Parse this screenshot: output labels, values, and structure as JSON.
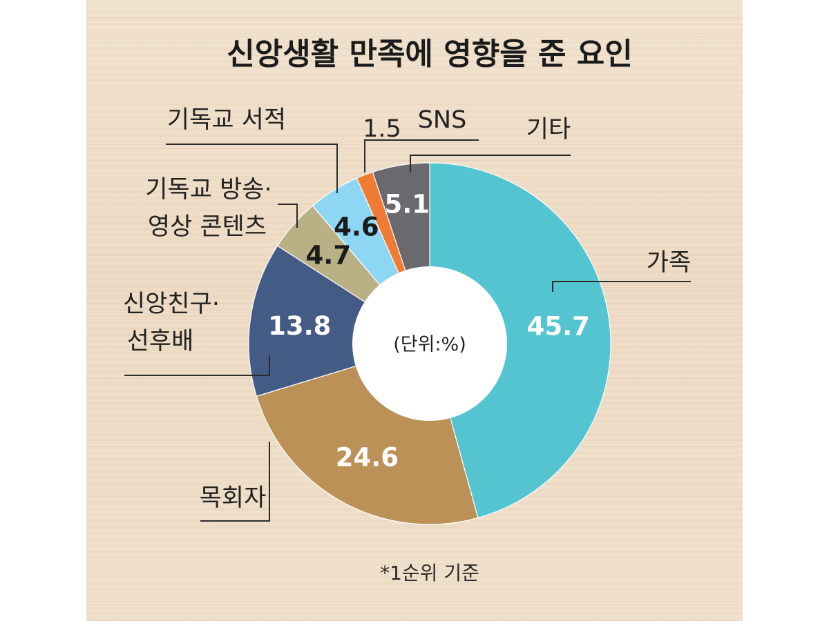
{
  "chart_data": {
    "type": "pie",
    "variant": "donut",
    "title": "신앙생활 만족에 영향을 준 요인",
    "unit_label": "(단위:%)",
    "footnote": "*1순위 기준",
    "slices": [
      {
        "label": "가족",
        "value": 45.7,
        "value_text": "45.7",
        "color": "#55c4d1",
        "value_color": "#ffffff"
      },
      {
        "label": "목회자",
        "value": 24.6,
        "value_text": "24.6",
        "color": "#bb9158",
        "value_color": "#ffffff"
      },
      {
        "label": "신앙친구·\n선후배",
        "value": 13.8,
        "value_text": "13.8",
        "color": "#445b86",
        "value_color": "#ffffff"
      },
      {
        "label": "기독교 방송·\n영상 콘텐츠",
        "value": 4.7,
        "value_text": "4.7",
        "color": "#bab086",
        "value_color": "#1b1b1b"
      },
      {
        "label": "기독교 서적",
        "value": 4.6,
        "value_text": "4.6",
        "color": "#8ed7f4",
        "value_color": "#1b1b1b"
      },
      {
        "label": "SNS",
        "value": 1.5,
        "value_text": "1.5",
        "color": "#f07b35",
        "value_color": "#222222"
      },
      {
        "label": "기타",
        "value": 5.1,
        "value_text": "5.1",
        "color": "#6a6a6e",
        "value_color": "#ffffff"
      }
    ]
  }
}
